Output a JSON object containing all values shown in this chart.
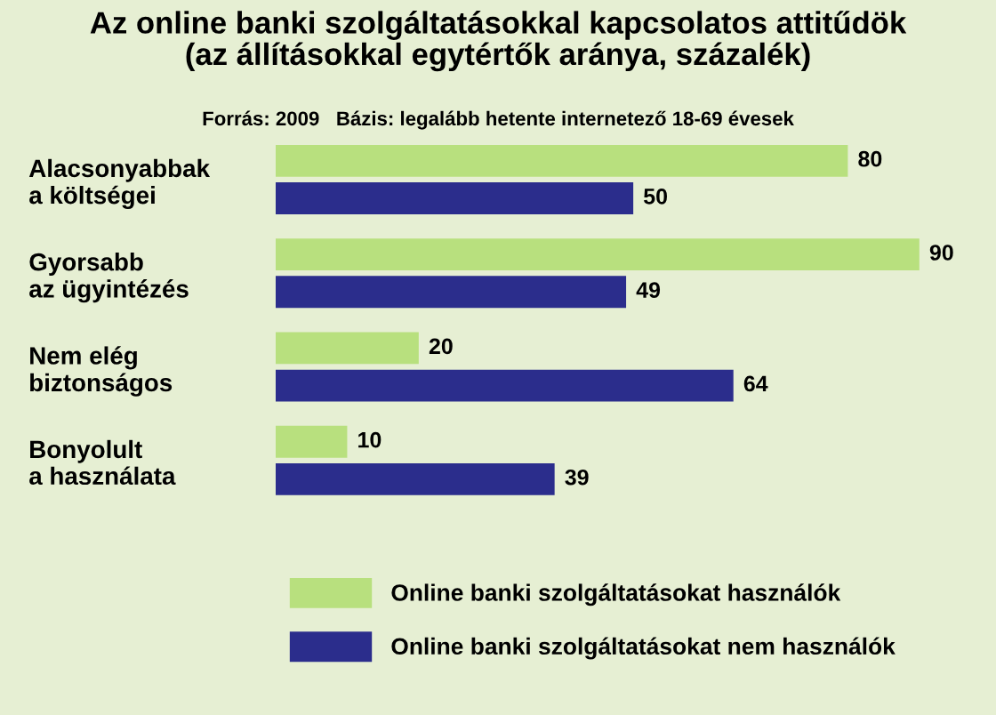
{
  "chart_data": {
    "type": "bar",
    "orientation": "horizontal",
    "title": "Az online banki szolgáltatásokkal kapcsolatos attitűdök\n(az állításokkal egytértők aránya, százalék)",
    "subtitle": "Forrás: 2009   Bázis: legalább hetente internetező 18-69 évesek",
    "categories": [
      "Alacsonyabbak\na költségei",
      "Gyorsabb\naz ügyintézés",
      "Nem elég\nbiztonságos",
      "Bonyolult\na használata"
    ],
    "series": [
      {
        "name": "Online banki szolgáltatásokat használók",
        "color": "#b8e07e",
        "values": [
          80,
          90,
          20,
          10
        ]
      },
      {
        "name": "Online banki szolgáltatásokat nem használók",
        "color": "#2b2d8c",
        "values": [
          50,
          49,
          64,
          39
        ]
      }
    ],
    "data_labels": true,
    "legend": "bottom",
    "tick_labels": "y",
    "grid": false
  }
}
